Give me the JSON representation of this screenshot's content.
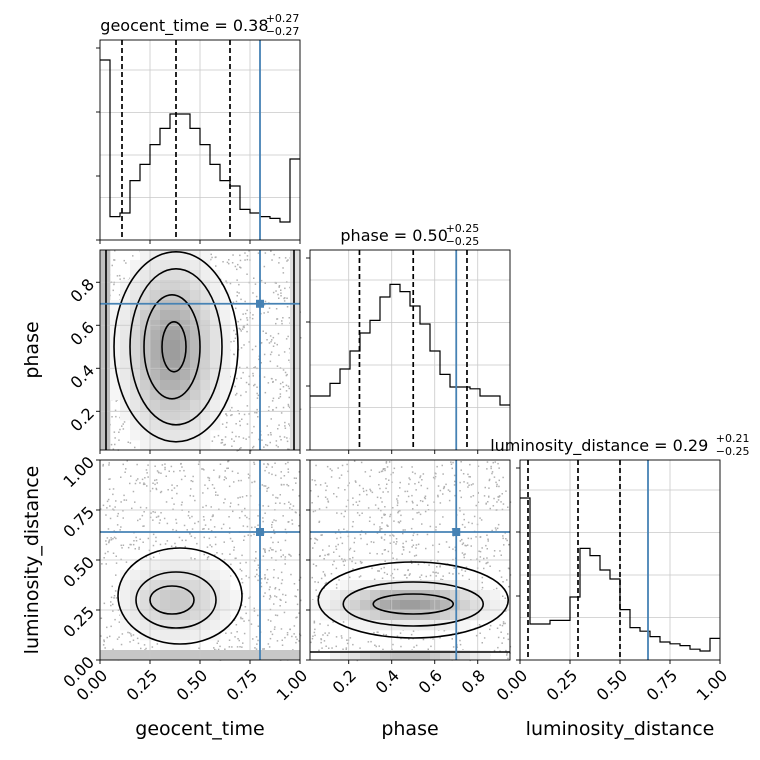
{
  "chart_data": {
    "type": "corner",
    "parameters": [
      "geocent_time",
      "phase",
      "luminosity_distance"
    ],
    "ranges": {
      "geocent_time": [
        0,
        1
      ],
      "phase": [
        0.02,
        0.95
      ],
      "luminosity_distance": [
        0,
        1
      ]
    },
    "ticks": {
      "geocent_time": [
        "0.00",
        "0.25",
        "0.50",
        "0.75",
        "1.00"
      ],
      "phase": [
        "0.2",
        "0.4",
        "0.6",
        "0.8"
      ],
      "luminosity_distance": [
        "0.00",
        "0.25",
        "0.50",
        "0.75",
        "1.00"
      ]
    },
    "truths": {
      "geocent_time": 0.8,
      "phase": 0.7,
      "luminosity_distance": 0.64
    },
    "titles": [
      {
        "param": "geocent_time",
        "text": "geocent_time = 0.38",
        "plus": "+0.27",
        "minus": "−0.27"
      },
      {
        "param": "phase",
        "text": "phase = 0.50",
        "plus": "+0.25",
        "minus": "−0.25"
      },
      {
        "param": "luminosity_distance",
        "text": "luminosity_distance = 0.29",
        "plus": "+0.21",
        "minus": "−0.25"
      }
    ],
    "quantiles": {
      "geocent_time": [
        0.11,
        0.38,
        0.65
      ],
      "phase": [
        0.25,
        0.5,
        0.75
      ],
      "luminosity_distance": [
        0.04,
        0.29,
        0.5
      ]
    },
    "histograms": {
      "geocent_time": [
        1.0,
        0.13,
        0.15,
        0.33,
        0.42,
        0.53,
        0.62,
        0.7,
        0.7,
        0.62,
        0.53,
        0.42,
        0.33,
        0.3,
        0.17,
        0.15,
        0.13,
        0.12,
        0.1,
        0.45
      ],
      "phase": [
        0.3,
        0.3,
        0.37,
        0.45,
        0.55,
        0.65,
        0.72,
        0.85,
        0.92,
        0.88,
        0.8,
        0.7,
        0.55,
        0.42,
        0.35,
        0.35,
        0.34,
        0.3,
        0.3,
        0.25
      ],
      "luminosity_distance": [
        0.9,
        0.2,
        0.2,
        0.22,
        0.22,
        0.35,
        0.62,
        0.58,
        0.5,
        0.45,
        0.28,
        0.18,
        0.16,
        0.13,
        0.1,
        0.09,
        0.08,
        0.06,
        0.05,
        0.12
      ]
    }
  }
}
